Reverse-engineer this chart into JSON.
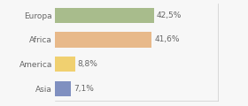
{
  "categories": [
    "Europa",
    "Africa",
    "America",
    "Asia"
  ],
  "values": [
    42.5,
    41.6,
    8.8,
    7.1
  ],
  "labels": [
    "42,5%",
    "41,6%",
    "8,8%",
    "7,1%"
  ],
  "bar_colors": [
    "#a8bc8c",
    "#e8b98a",
    "#f0d070",
    "#8090c0"
  ],
  "background_color": "#f7f7f7",
  "xlim": [
    0,
    70
  ],
  "bar_height": 0.62,
  "label_fontsize": 6.5,
  "tick_fontsize": 6.5,
  "text_color": "#666666"
}
